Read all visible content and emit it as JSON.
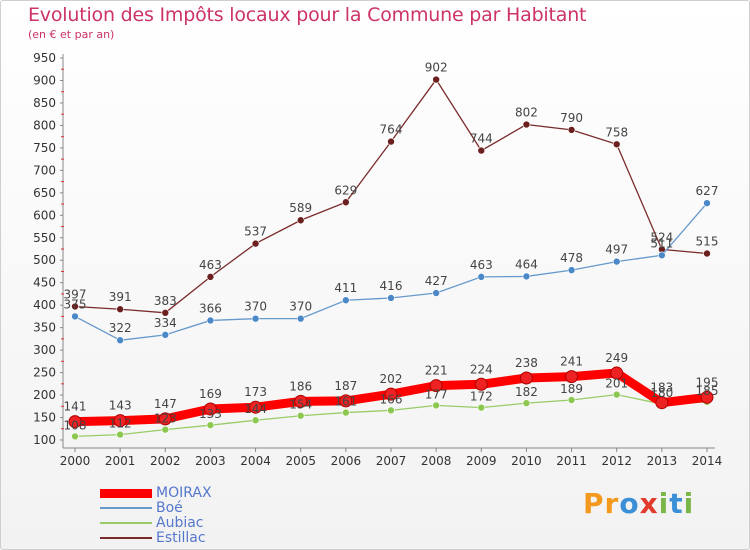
{
  "title": "Evolution des Impôts locaux pour la Commune par Habitant",
  "subtitle": "(en € et par an)",
  "logo": {
    "letters": [
      "P",
      "r",
      "o",
      "x",
      "i",
      "t",
      "i"
    ],
    "colors": [
      "#f39a1e",
      "#f39a1e",
      "#3a8fd6",
      "#e23b2e",
      "#7ab648",
      "#3a8fd6",
      "#7ab648"
    ]
  },
  "chart_data": {
    "type": "line",
    "title": "Evolution des Impôts locaux pour la Commune par Habitant",
    "subtitle": "(en € et par an)",
    "xlabel": "",
    "ylabel": "",
    "x": [
      2000,
      2001,
      2002,
      2003,
      2004,
      2005,
      2006,
      2007,
      2008,
      2009,
      2010,
      2011,
      2012,
      2013,
      2014
    ],
    "ylim": [
      100,
      950
    ],
    "yticks": [
      100,
      150,
      200,
      250,
      300,
      350,
      400,
      450,
      500,
      550,
      600,
      650,
      700,
      750,
      800,
      850,
      900,
      950
    ],
    "grid": false,
    "legend_position": "bottom-left",
    "series": [
      {
        "name": "MOIRAX",
        "color": "#ff0000",
        "values": [
          141,
          143,
          147,
          169,
          173,
          186,
          187,
          202,
          221,
          224,
          238,
          241,
          249,
          183,
          195
        ]
      },
      {
        "name": "Boé",
        "color": "#6699cc",
        "values": [
          375,
          322,
          334,
          366,
          370,
          370,
          411,
          416,
          427,
          463,
          464,
          478,
          497,
          511,
          627
        ]
      },
      {
        "name": "Aubiac",
        "color": "#99cc66",
        "values": [
          108,
          112,
          123,
          133,
          144,
          154,
          161,
          166,
          177,
          172,
          182,
          189,
          201,
          180,
          185
        ]
      },
      {
        "name": "Estillac",
        "color": "#7a2a2a",
        "values": [
          397,
          391,
          383,
          463,
          537,
          589,
          629,
          764,
          902,
          744,
          802,
          790,
          758,
          524,
          515
        ]
      }
    ]
  }
}
